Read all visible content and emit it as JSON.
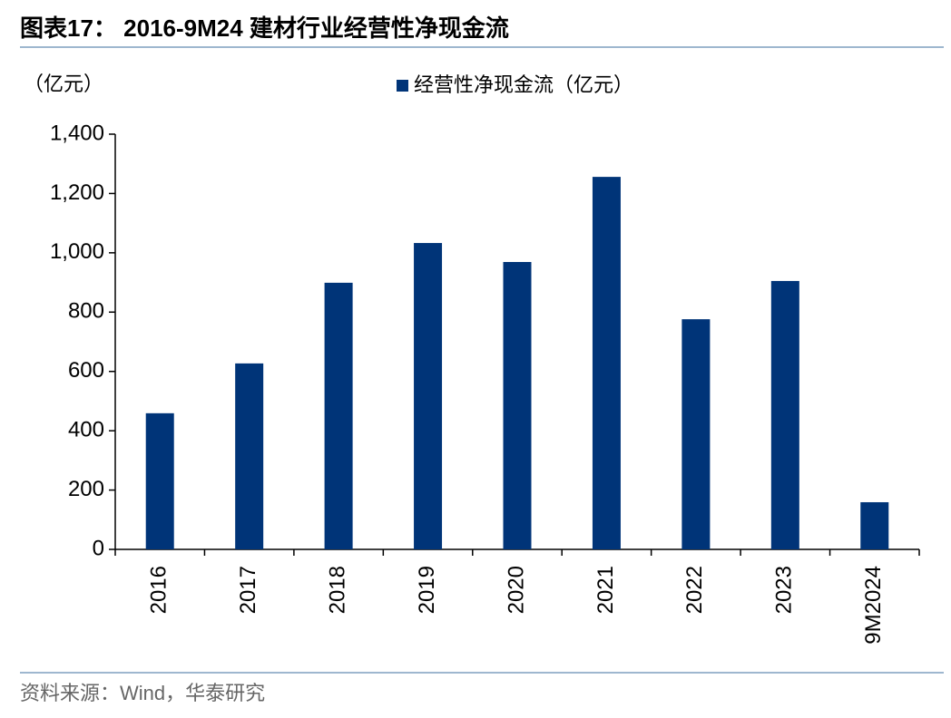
{
  "chart_data": {
    "type": "bar",
    "title": "图表17： 2016-9M24 建材行业经营性净现金流",
    "y_label": "（亿元）",
    "source": "资料来源：Wind，华泰研究",
    "categories": [
      "2016",
      "2017",
      "2018",
      "2019",
      "2020",
      "2021",
      "2022",
      "2023",
      "9M2024"
    ],
    "series": [
      {
        "name": "经营性净现金流（亿元）",
        "color": "#003478",
        "values": [
          459,
          627,
          899,
          1033,
          969,
          1256,
          776,
          905,
          159
        ]
      }
    ],
    "ylim": [
      0,
      1400
    ],
    "yticks": [
      0,
      200,
      400,
      600,
      800,
      {
        "value": 1000,
        "label": "1,000"
      },
      {
        "value": 1200,
        "label": "1,200"
      },
      {
        "value": 1400,
        "label": "1,400"
      }
    ],
    "grid": false
  }
}
